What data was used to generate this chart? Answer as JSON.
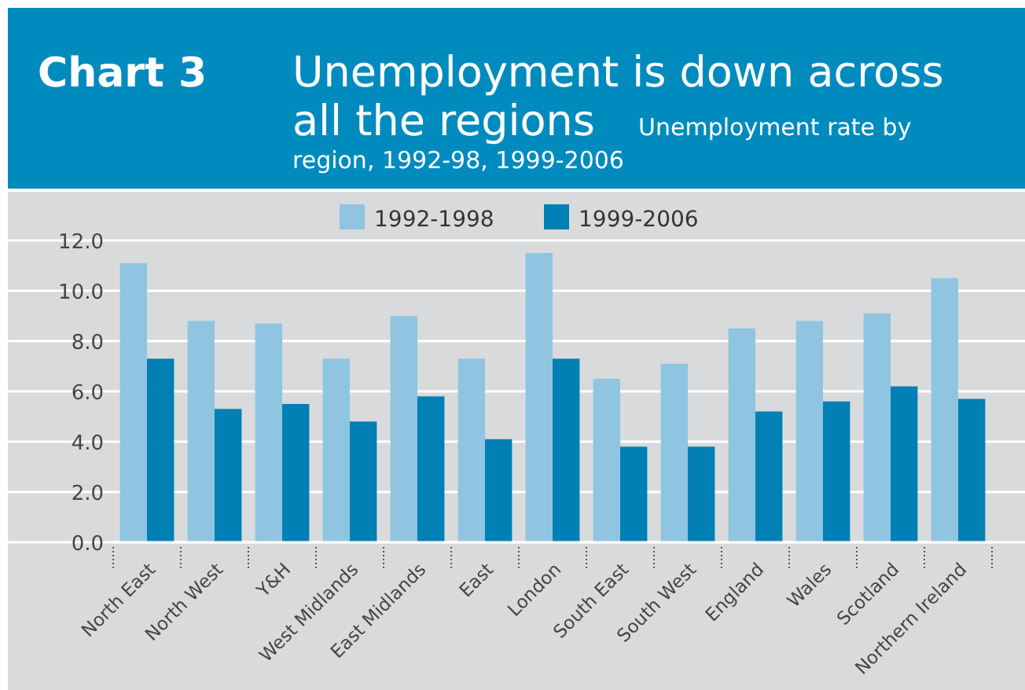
{
  "chart_data": {
    "type": "bar",
    "title": "Unemployment is down across all the regions",
    "subtitle": "Unemployment rate by region, 1992-98, 1999-2006",
    "annotations": [
      "Chart 3"
    ],
    "categories": [
      "North East",
      "North West",
      "Y&H",
      "West Midlands",
      "East Midlands",
      "East",
      "London",
      "South East",
      "South West",
      "England",
      "Wales",
      "Scotland",
      "Northern Ireland"
    ],
    "series": [
      {
        "name": "1992-1998",
        "color": "#8fc5e0",
        "values": [
          11.1,
          8.8,
          8.7,
          7.3,
          9.0,
          7.3,
          11.5,
          6.5,
          7.1,
          8.5,
          8.8,
          9.1,
          10.5
        ]
      },
      {
        "name": "1999-2006",
        "color": "#0080b4",
        "values": [
          7.3,
          5.3,
          5.5,
          4.8,
          5.8,
          4.1,
          7.3,
          3.8,
          3.8,
          5.2,
          5.6,
          6.2,
          5.7
        ]
      }
    ],
    "ylim": [
      0,
      12
    ],
    "yticks": [
      {
        "value": 0,
        "label": "0.0"
      },
      {
        "value": 2,
        "label": "2.0"
      },
      {
        "value": 4,
        "label": "4.0"
      },
      {
        "value": 6,
        "label": "6.0"
      },
      {
        "value": 8,
        "label": "8.0"
      },
      {
        "value": 10,
        "label": "10.0"
      },
      {
        "value": 12,
        "label": "12.0"
      }
    ],
    "grid": "y",
    "legend": "top"
  }
}
